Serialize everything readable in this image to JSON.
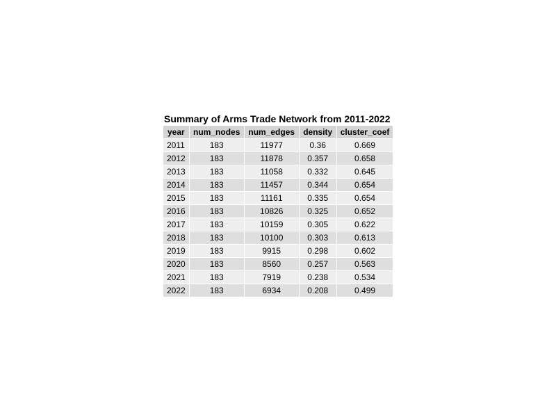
{
  "table": {
    "title": "Summary of Arms Trade Network from 2011-2022",
    "columns": [
      "year",
      "num_nodes",
      "num_edges",
      "density",
      "cluster_coef"
    ],
    "rows": [
      [
        "2011",
        "183",
        "11977",
        "0.36",
        "0.669"
      ],
      [
        "2012",
        "183",
        "11878",
        "0.357",
        "0.658"
      ],
      [
        "2013",
        "183",
        "11058",
        "0.332",
        "0.645"
      ],
      [
        "2014",
        "183",
        "11457",
        "0.344",
        "0.654"
      ],
      [
        "2015",
        "183",
        "11161",
        "0.335",
        "0.654"
      ],
      [
        "2016",
        "183",
        "10826",
        "0.325",
        "0.652"
      ],
      [
        "2017",
        "183",
        "10159",
        "0.305",
        "0.622"
      ],
      [
        "2018",
        "183",
        "10100",
        "0.303",
        "0.613"
      ],
      [
        "2019",
        "183",
        "9915",
        "0.298",
        "0.602"
      ],
      [
        "2020",
        "183",
        "8560",
        "0.257",
        "0.563"
      ],
      [
        "2021",
        "183",
        "7919",
        "0.238",
        "0.534"
      ],
      [
        "2022",
        "183",
        "6934",
        "0.208",
        "0.499"
      ]
    ]
  },
  "colors": {
    "header_bg": "#d4d4d4",
    "row_odd_bg": "#eeeeee",
    "row_even_bg": "#dedede",
    "text": "#000000"
  }
}
